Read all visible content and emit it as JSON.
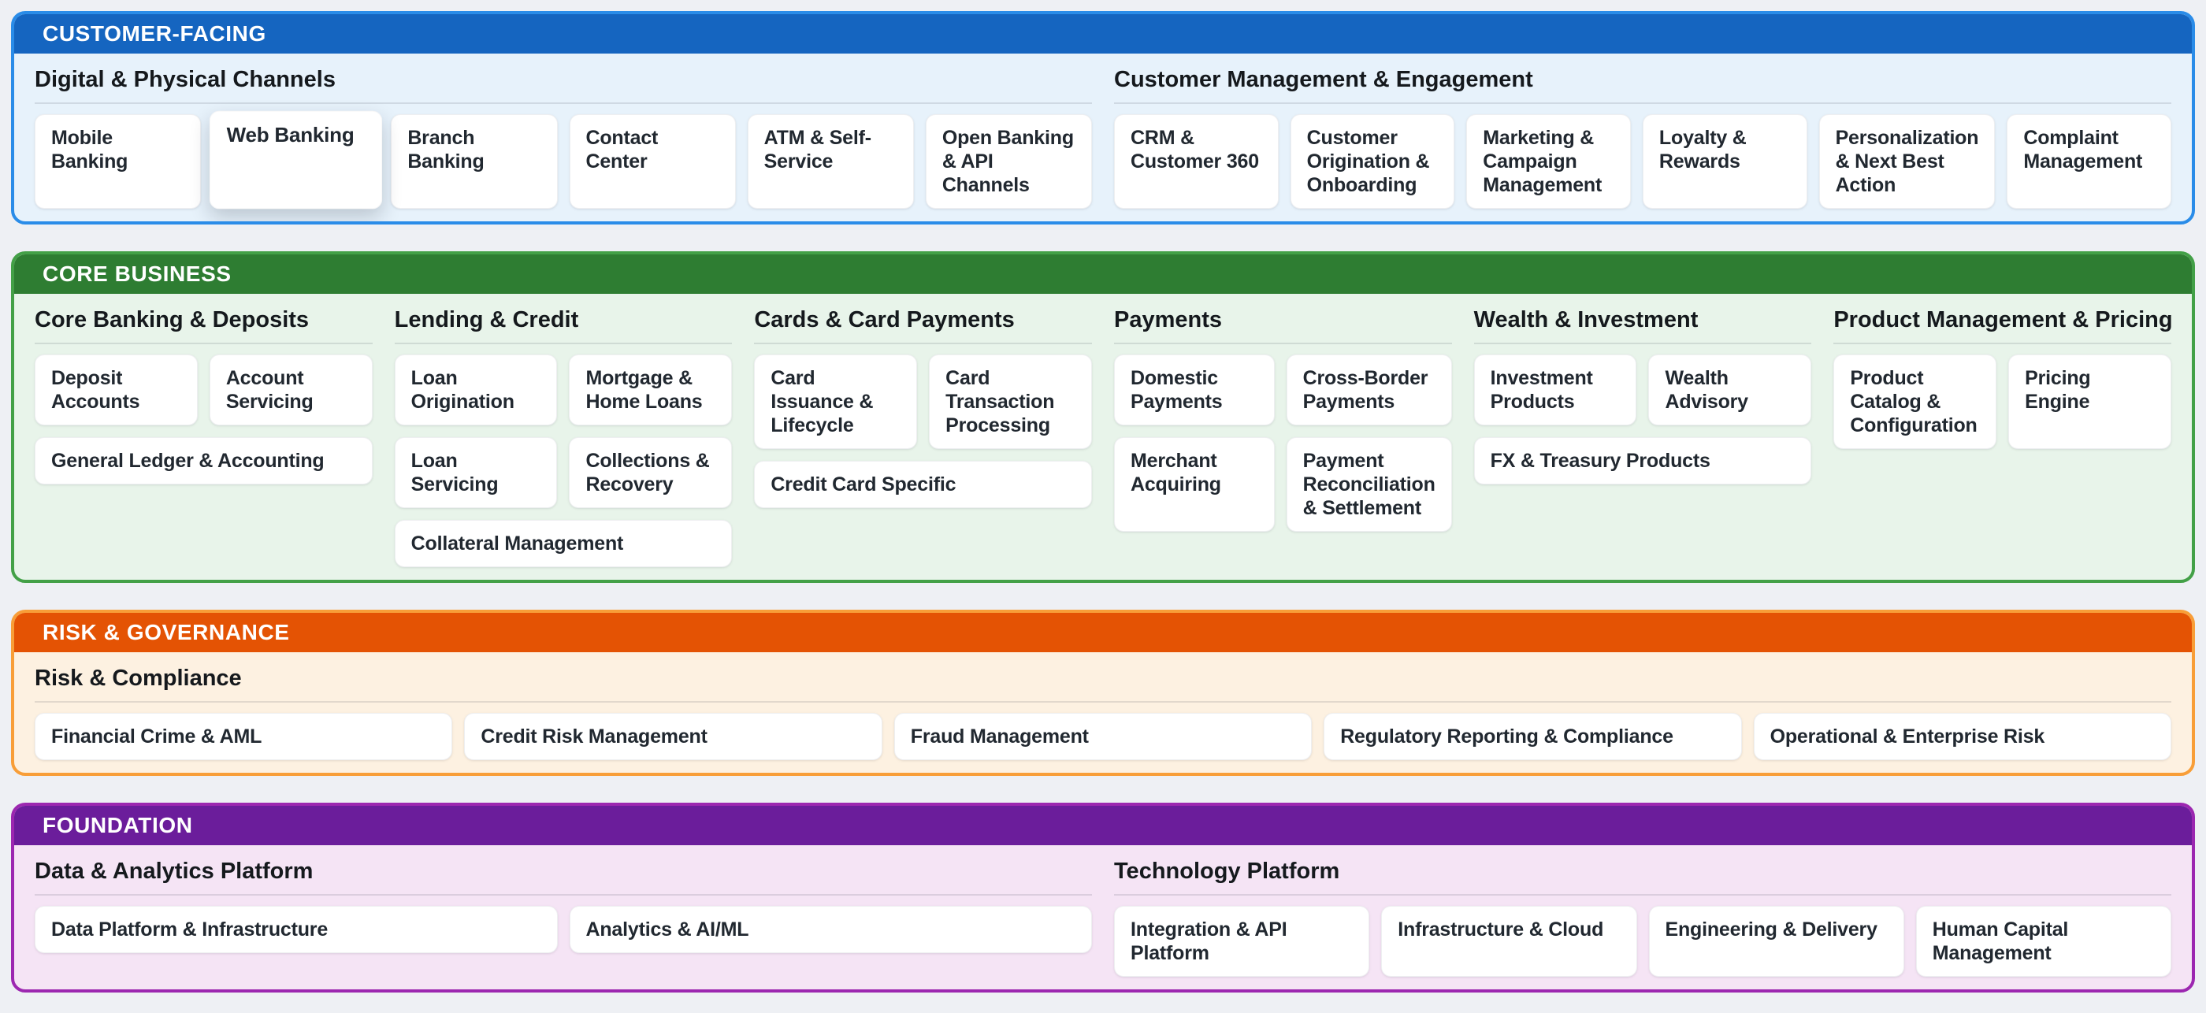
{
  "page": {
    "background": "#EEF0F4"
  },
  "bands": [
    {
      "label": "CUSTOMER-FACING",
      "colors": {
        "header": "#1565C0",
        "border": "#2A8CE8",
        "body": "#E7F2FB"
      },
      "sections": [
        {
          "title": "Digital & Physical Channels",
          "tiles": [
            {
              "label": "Mobile Banking"
            },
            {
              "label": "Web Banking",
              "highlighted": true
            },
            {
              "label": "Branch Banking"
            },
            {
              "label": "Contact Center"
            },
            {
              "label": "ATM & Self-Service"
            },
            {
              "label": "Open Banking & API Channels"
            }
          ]
        },
        {
          "title": "Customer Management & Engagement",
          "tiles": [
            {
              "label": "CRM & Customer 360"
            },
            {
              "label": "Customer Origination & Onboarding"
            },
            {
              "label": "Marketing & Campaign Management"
            },
            {
              "label": "Loyalty & Rewards"
            },
            {
              "label": "Personalization & Next Best Action"
            },
            {
              "label": "Complaint Management"
            }
          ]
        }
      ]
    },
    {
      "label": "CORE BUSINESS",
      "colors": {
        "header": "#2E7D32",
        "border": "#43A047",
        "body": "#E8F4EA"
      },
      "sections": [
        {
          "title": "Core Banking & Deposits",
          "tiles": [
            {
              "label": "Deposit Accounts"
            },
            {
              "label": "Account Servicing"
            },
            {
              "label": "General Ledger & Accounting"
            }
          ]
        },
        {
          "title": "Lending & Credit",
          "tiles": [
            {
              "label": "Loan Origination"
            },
            {
              "label": "Mortgage & Home Loans"
            },
            {
              "label": "Loan Servicing"
            },
            {
              "label": "Collections & Recovery"
            },
            {
              "label": "Collateral Management"
            }
          ]
        },
        {
          "title": "Cards & Card Payments",
          "tiles": [
            {
              "label": "Card Issuance & Lifecycle"
            },
            {
              "label": "Card Transaction Processing"
            },
            {
              "label": "Credit Card Specific"
            }
          ]
        },
        {
          "title": "Payments",
          "tiles": [
            {
              "label": "Domestic Payments"
            },
            {
              "label": "Cross-Border Payments"
            },
            {
              "label": "Merchant Acquiring"
            },
            {
              "label": "Payment Reconciliation & Settlement"
            }
          ]
        },
        {
          "title": "Wealth & Investment",
          "tiles": [
            {
              "label": "Investment Products"
            },
            {
              "label": "Wealth Advisory"
            },
            {
              "label": "FX & Treasury Products"
            }
          ]
        },
        {
          "title": "Product Management & Pricing",
          "tiles": [
            {
              "label": "Product Catalog & Configuration"
            },
            {
              "label": "Pricing Engine"
            }
          ]
        }
      ]
    },
    {
      "label": "RISK & GOVERNANCE",
      "colors": {
        "header": "#E45304",
        "border": "#F89E38",
        "body": "#FDF1E1"
      },
      "sections": [
        {
          "title": "Risk & Compliance",
          "tiles": [
            {
              "label": "Financial Crime & AML"
            },
            {
              "label": "Credit Risk Management"
            },
            {
              "label": "Fraud Management"
            },
            {
              "label": "Regulatory Reporting & Compliance"
            },
            {
              "label": "Operational & Enterprise Risk"
            }
          ]
        }
      ]
    },
    {
      "label": "FOUNDATION",
      "colors": {
        "header": "#6B1D9B",
        "border": "#9C27B0",
        "body": "#F5E4F5"
      },
      "sections": [
        {
          "title": "Data & Analytics Platform",
          "tiles": [
            {
              "label": "Data Platform & Infrastructure"
            },
            {
              "label": "Analytics & AI/ML"
            }
          ]
        },
        {
          "title": "Technology Platform",
          "tiles": [
            {
              "label": "Integration & API Platform"
            },
            {
              "label": "Infrastructure & Cloud"
            },
            {
              "label": "Engineering & Delivery"
            },
            {
              "label": "Human Capital Management"
            }
          ]
        }
      ]
    }
  ]
}
